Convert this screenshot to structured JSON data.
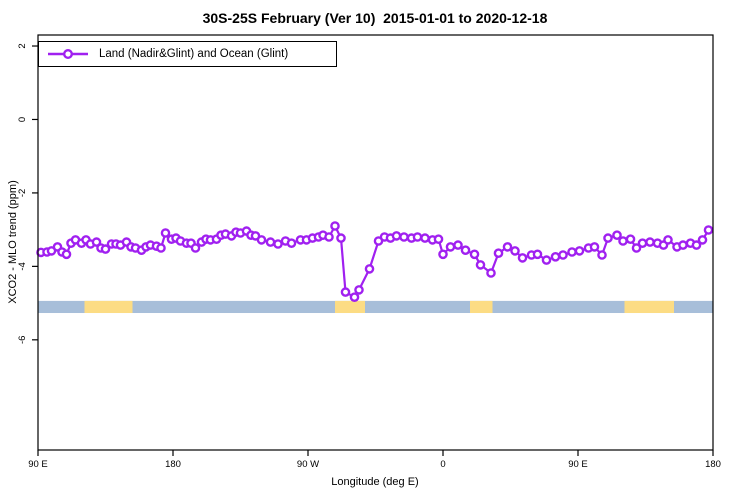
{
  "title": "30S-25S February (Ver 10)  2015-01-01 to 2020-12-18",
  "legend": {
    "label": "Land (Nadir&Glint) and Ocean (Glint)"
  },
  "colors": {
    "line": "#A020F0",
    "marker_fill": "#FFFFFF",
    "ocean": "#A7BED9",
    "land": "#FCDC84",
    "axis": "#000000",
    "background": "#FFFFFF"
  },
  "chart_data": {
    "type": "line",
    "title": "30S-25S February (Ver 10)  2015-01-01 to 2020-12-18",
    "xlabel": "Longitude (deg E)",
    "ylabel": "XCO2 - MLO trend (ppm)",
    "xlim": [
      90,
      540
    ],
    "ylim": [
      -9.0,
      2.3
    ],
    "grid": false,
    "legend_position": "top-left",
    "xticks": [
      {
        "value": 90,
        "label": "90 E"
      },
      {
        "value": 180,
        "label": "180"
      },
      {
        "value": 270,
        "label": "90 W"
      },
      {
        "value": 360,
        "label": "0"
      },
      {
        "value": 450,
        "label": "90 E"
      },
      {
        "value": 540,
        "label": "180"
      }
    ],
    "yticks": [
      {
        "value": 2,
        "label": "2"
      },
      {
        "value": 0,
        "label": "0"
      },
      {
        "value": -2,
        "label": "-2"
      },
      {
        "value": -4,
        "label": "-4"
      },
      {
        "value": -6,
        "label": "-6"
      }
    ],
    "series": [
      {
        "name": "Land (Nadir&Glint) and Ocean (Glint)",
        "color": "#A020F0",
        "marker": "open-circle",
        "points": [
          [
            92,
            -3.62
          ],
          [
            96,
            -3.61
          ],
          [
            99,
            -3.58
          ],
          [
            103,
            -3.47
          ],
          [
            106,
            -3.61
          ],
          [
            109,
            -3.67
          ],
          [
            112,
            -3.37
          ],
          [
            115,
            -3.28
          ],
          [
            119,
            -3.37
          ],
          [
            122,
            -3.28
          ],
          [
            125,
            -3.39
          ],
          [
            129,
            -3.34
          ],
          [
            132,
            -3.5
          ],
          [
            135,
            -3.53
          ],
          [
            139,
            -3.39
          ],
          [
            142,
            -3.39
          ],
          [
            145,
            -3.42
          ],
          [
            149,
            -3.34
          ],
          [
            152,
            -3.47
          ],
          [
            155,
            -3.5
          ],
          [
            159,
            -3.56
          ],
          [
            162,
            -3.47
          ],
          [
            165,
            -3.42
          ],
          [
            169,
            -3.45
          ],
          [
            172,
            -3.5
          ],
          [
            175,
            -3.09
          ],
          [
            179,
            -3.26
          ],
          [
            182,
            -3.23
          ],
          [
            185,
            -3.31
          ],
          [
            189,
            -3.37
          ],
          [
            192,
            -3.37
          ],
          [
            195,
            -3.5
          ],
          [
            199,
            -3.34
          ],
          [
            202,
            -3.26
          ],
          [
            205,
            -3.28
          ],
          [
            209,
            -3.26
          ],
          [
            212,
            -3.15
          ],
          [
            215,
            -3.12
          ],
          [
            219,
            -3.17
          ],
          [
            222,
            -3.07
          ],
          [
            225,
            -3.09
          ],
          [
            229,
            -3.04
          ],
          [
            232,
            -3.15
          ],
          [
            235,
            -3.17
          ],
          [
            239,
            -3.28
          ],
          [
            245,
            -3.34
          ],
          [
            250,
            -3.39
          ],
          [
            255,
            -3.31
          ],
          [
            259,
            -3.37
          ],
          [
            265,
            -3.28
          ],
          [
            269,
            -3.28
          ],
          [
            273,
            -3.23
          ],
          [
            277,
            -3.2
          ],
          [
            280,
            -3.15
          ],
          [
            284,
            -3.2
          ],
          [
            288,
            -2.9
          ],
          [
            292,
            -3.23
          ],
          [
            295,
            -4.7
          ],
          [
            301,
            -4.84
          ],
          [
            304,
            -4.64
          ],
          [
            311,
            -4.07
          ],
          [
            317,
            -3.31
          ],
          [
            321,
            -3.2
          ],
          [
            325,
            -3.23
          ],
          [
            329,
            -3.17
          ],
          [
            334,
            -3.2
          ],
          [
            339,
            -3.23
          ],
          [
            343,
            -3.2
          ],
          [
            348,
            -3.23
          ],
          [
            353,
            -3.28
          ],
          [
            357,
            -3.26
          ],
          [
            360,
            -3.67
          ],
          [
            365,
            -3.47
          ],
          [
            370,
            -3.42
          ],
          [
            375,
            -3.56
          ],
          [
            381,
            -3.67
          ],
          [
            385,
            -3.96
          ],
          [
            392,
            -4.18
          ],
          [
            397,
            -3.64
          ],
          [
            403,
            -3.47
          ],
          [
            408,
            -3.58
          ],
          [
            413,
            -3.77
          ],
          [
            419,
            -3.69
          ],
          [
            423,
            -3.67
          ],
          [
            429,
            -3.83
          ],
          [
            435,
            -3.74
          ],
          [
            440,
            -3.69
          ],
          [
            446,
            -3.61
          ],
          [
            451,
            -3.58
          ],
          [
            457,
            -3.5
          ],
          [
            461,
            -3.47
          ],
          [
            466,
            -3.69
          ],
          [
            470,
            -3.23
          ],
          [
            476,
            -3.15
          ],
          [
            480,
            -3.31
          ],
          [
            485,
            -3.26
          ],
          [
            489,
            -3.5
          ],
          [
            493,
            -3.37
          ],
          [
            498,
            -3.34
          ],
          [
            503,
            -3.37
          ],
          [
            507,
            -3.42
          ],
          [
            510,
            -3.28
          ],
          [
            516,
            -3.47
          ],
          [
            520,
            -3.42
          ],
          [
            525,
            -3.37
          ],
          [
            529,
            -3.42
          ],
          [
            533,
            -3.28
          ],
          [
            537,
            -3.01
          ]
        ]
      }
    ],
    "surface_band": {
      "meaning": "land (yellow) vs ocean (blue) strip along longitude",
      "ocean_color": "#A7BED9",
      "land_color": "#FCDC84",
      "value_top": -4.94,
      "value_bottom": -5.27,
      "land_segments_lon": [
        [
          121,
          153
        ],
        [
          288,
          308
        ],
        [
          378,
          393
        ],
        [
          481,
          514
        ]
      ]
    }
  }
}
